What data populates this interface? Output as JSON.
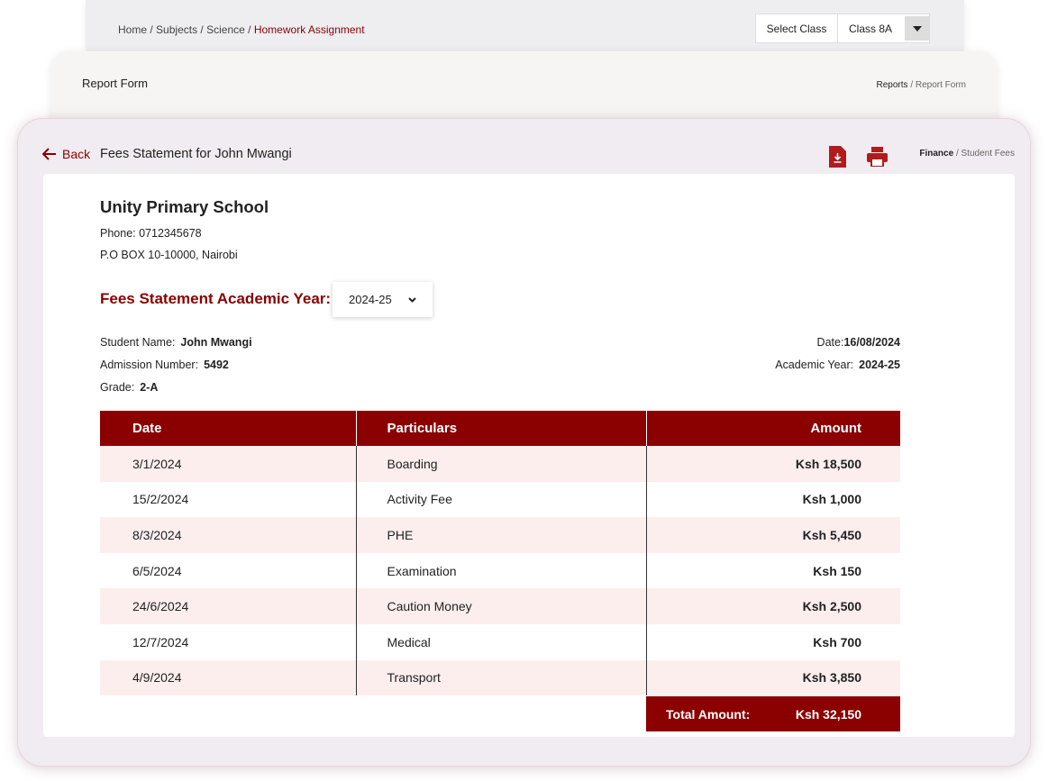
{
  "top_bar": {
    "breadcrumb": [
      "Home",
      "Subjects",
      "Science",
      "Homework Assignment"
    ],
    "separator": "/",
    "select_label": "Select Class",
    "select_value": "Class 8A"
  },
  "report_header": {
    "title": "Report Form",
    "breadcrumb": [
      "Reports",
      "Report Form"
    ]
  },
  "statement": {
    "back": "Back",
    "title": "Fees Statement for John Mwangi",
    "breadcrumb": [
      "Finance",
      "Student Fees"
    ],
    "school": {
      "name": "Unity Primary School",
      "phone": "Phone: 0712345678",
      "address": "P.O BOX 10-10000, Nairobi"
    },
    "year_label": "Fees Statement Academic Year:",
    "year_select": "2024-25",
    "student": {
      "name_label": "Student Name:",
      "name": "John Mwangi",
      "admission_label": "Admission Number:",
      "admission": "5492",
      "grade_label": "Grade:",
      "grade": "2-A",
      "date_label": "Date:",
      "date": "16/08/2024",
      "year_label": "Academic Year:",
      "year": "2024-25"
    },
    "table": {
      "columns": [
        "Date",
        "Particulars",
        "Amount"
      ],
      "rows": [
        [
          "3/1/2024",
          "Boarding",
          "Ksh 18,500"
        ],
        [
          "15/2/2024",
          "Activity Fee",
          "Ksh 1,000"
        ],
        [
          "8/3/2024",
          "PHE",
          "Ksh 5,450"
        ],
        [
          "6/5/2024",
          "Examination",
          "Ksh 150"
        ],
        [
          "24/6/2024",
          "Caution Money",
          "Ksh 2,500"
        ],
        [
          "12/7/2024",
          "Medical",
          "Ksh 700"
        ],
        [
          "4/9/2024",
          "Transport",
          "Ksh 3,850"
        ]
      ],
      "total_label": "Total Amount:",
      "total": "Ksh 32,150"
    }
  }
}
